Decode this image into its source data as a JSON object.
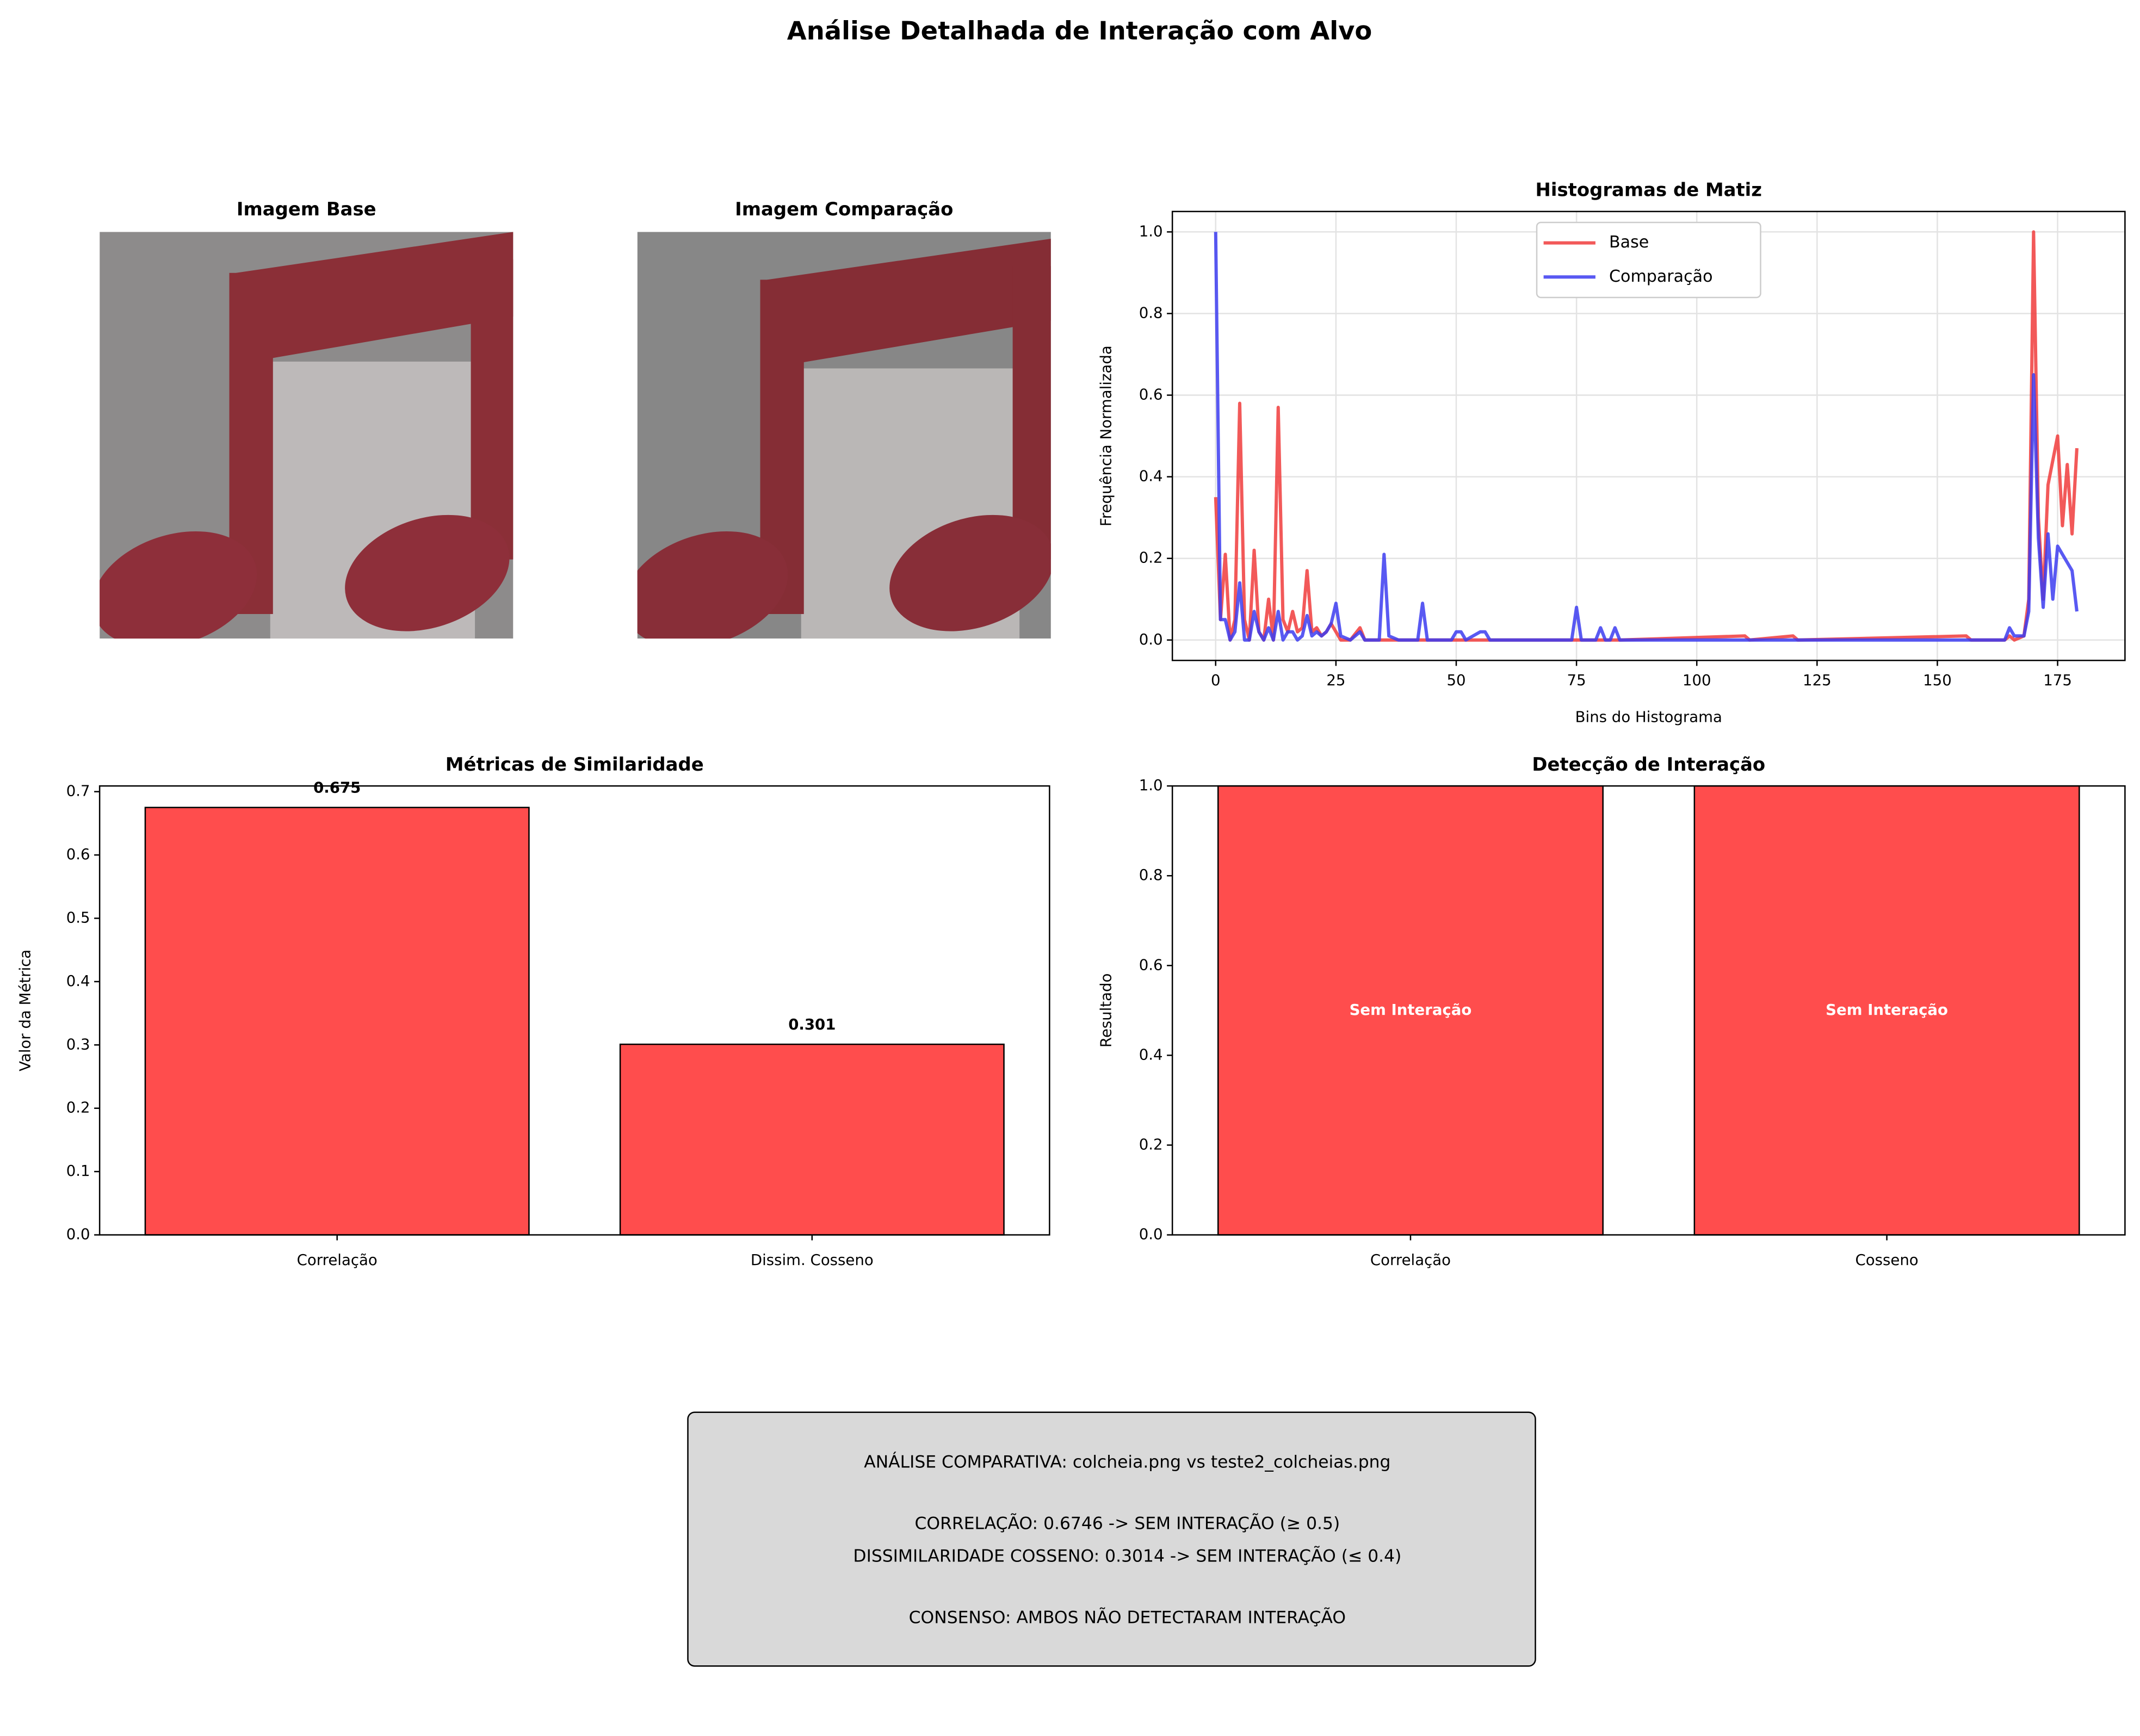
{
  "title": "Análise Detalhada de Interação com Alvo",
  "images": [
    {
      "title": "Imagem Base"
    },
    {
      "title": "Imagem Comparação"
    }
  ],
  "chart_data": [
    {
      "type": "line",
      "title": "Histogramas de Matiz",
      "x_label": "Bins do Histograma",
      "y_label": "Frequência Normalizada",
      "x": [
        0,
        1,
        2,
        3,
        4,
        5,
        6,
        7,
        8,
        9,
        10,
        11,
        12,
        13,
        14,
        15,
        16,
        17,
        18,
        19,
        20,
        21,
        22,
        23,
        24,
        25,
        26,
        28,
        30,
        31,
        34,
        35,
        36,
        38,
        42,
        43,
        44,
        49,
        50,
        51,
        52,
        55,
        56,
        57,
        74,
        75,
        76,
        79,
        80,
        81,
        82,
        83,
        84,
        110,
        111,
        120,
        121,
        156,
        157,
        164,
        165,
        166,
        168,
        169,
        170,
        171,
        172,
        173,
        174,
        175,
        176,
        177,
        178,
        179
      ],
      "series": [
        {
          "name": "Base",
          "color": "#f03c3c",
          "values": [
            0.35,
            0.05,
            0.21,
            0,
            0.05,
            0.58,
            0.05,
            0,
            0.22,
            0.02,
            0,
            0.1,
            0,
            0.57,
            0.05,
            0.02,
            0.07,
            0.02,
            0.03,
            0.17,
            0.02,
            0.03,
            0.01,
            0.02,
            0.04,
            0.02,
            0,
            0,
            0.03,
            0,
            0,
            0,
            0,
            0,
            0,
            0,
            0,
            0,
            0,
            0,
            0,
            0,
            0,
            0,
            0,
            0,
            0,
            0,
            0,
            0,
            0,
            0,
            0,
            0.01,
            0,
            0.01,
            0,
            0.01,
            0,
            0,
            0.01,
            0,
            0.01,
            0.1,
            1.0,
            0.3,
            0.1,
            0.38,
            0.44,
            0.5,
            0.28,
            0.43,
            0.26,
            0.47
          ]
        },
        {
          "name": "Comparação",
          "color": "#3c3cf0",
          "values": [
            1.0,
            0.05,
            0.05,
            0,
            0.02,
            0.14,
            0,
            0,
            0.07,
            0.02,
            0,
            0.03,
            0,
            0.07,
            0,
            0.02,
            0.02,
            0,
            0.01,
            0.06,
            0.01,
            0.02,
            0.01,
            0.02,
            0.04,
            0.09,
            0.01,
            0,
            0.02,
            0,
            0,
            0.21,
            0.01,
            0,
            0,
            0.09,
            0,
            0,
            0.02,
            0.02,
            0,
            0.02,
            0.02,
            0,
            0,
            0.08,
            0,
            0,
            0.03,
            0,
            0,
            0.03,
            0,
            0,
            0,
            0,
            0,
            0,
            0,
            0,
            0.03,
            0.01,
            0.01,
            0.07,
            0.65,
            0.25,
            0.08,
            0.26,
            0.1,
            0.23,
            0.21,
            0.19,
            0.17,
            0.07
          ]
        }
      ],
      "xlim": [
        -9,
        189
      ],
      "ylim": [
        -0.05,
        1.05
      ],
      "xticks": [
        0,
        25,
        50,
        75,
        100,
        125,
        150,
        175
      ],
      "yticks": [
        {
          "value": 0,
          "label": "0.0"
        },
        0.2,
        0.4,
        0.6,
        0.8,
        {
          "value": 1,
          "label": "1.0"
        }
      ],
      "grid": true,
      "legend": "upper center"
    },
    {
      "type": "bar",
      "title": "Métricas de Similaridade",
      "y_label": "Valor da Métrica",
      "categories": [
        "Correlação",
        "Dissim. Cosseno"
      ],
      "values": [
        0.675,
        0.301
      ],
      "value_labels": [
        "0.675",
        "0.301"
      ],
      "color": "#ff4d4d",
      "ylim": [
        0,
        0.709
      ],
      "yticks": [
        {
          "value": 0,
          "label": "0.0"
        },
        0.1,
        0.2,
        0.3,
        0.4,
        0.5,
        0.6,
        0.7
      ],
      "grid": false
    },
    {
      "type": "bar",
      "title": "Detecção de Interação",
      "y_label": "Resultado",
      "categories": [
        "Correlação",
        "Cosseno"
      ],
      "values": [
        1,
        1
      ],
      "annotations": [
        "Sem Interação",
        "Sem Interação"
      ],
      "color": "#ff4d4d",
      "ylim": [
        0,
        1
      ],
      "yticks": [
        {
          "value": 0,
          "label": "0.0"
        },
        0.2,
        0.4,
        0.6,
        0.8,
        {
          "value": 1,
          "label": "1.0"
        }
      ],
      "grid": false
    }
  ],
  "summary": {
    "lines": [
      "ANÁLISE COMPARATIVA: colcheia.png vs teste2_colcheias.png",
      "CORRELAÇÃO: 0.6746 -> SEM INTERAÇÃO (≥ 0.5)",
      "DISSIMILARIDADE COSSENO: 0.3014 -> SEM INTERAÇÃO (≤ 0.4)",
      "CONSENSO: AMBOS NÃO DETECTARAM INTERAÇÃO"
    ]
  }
}
